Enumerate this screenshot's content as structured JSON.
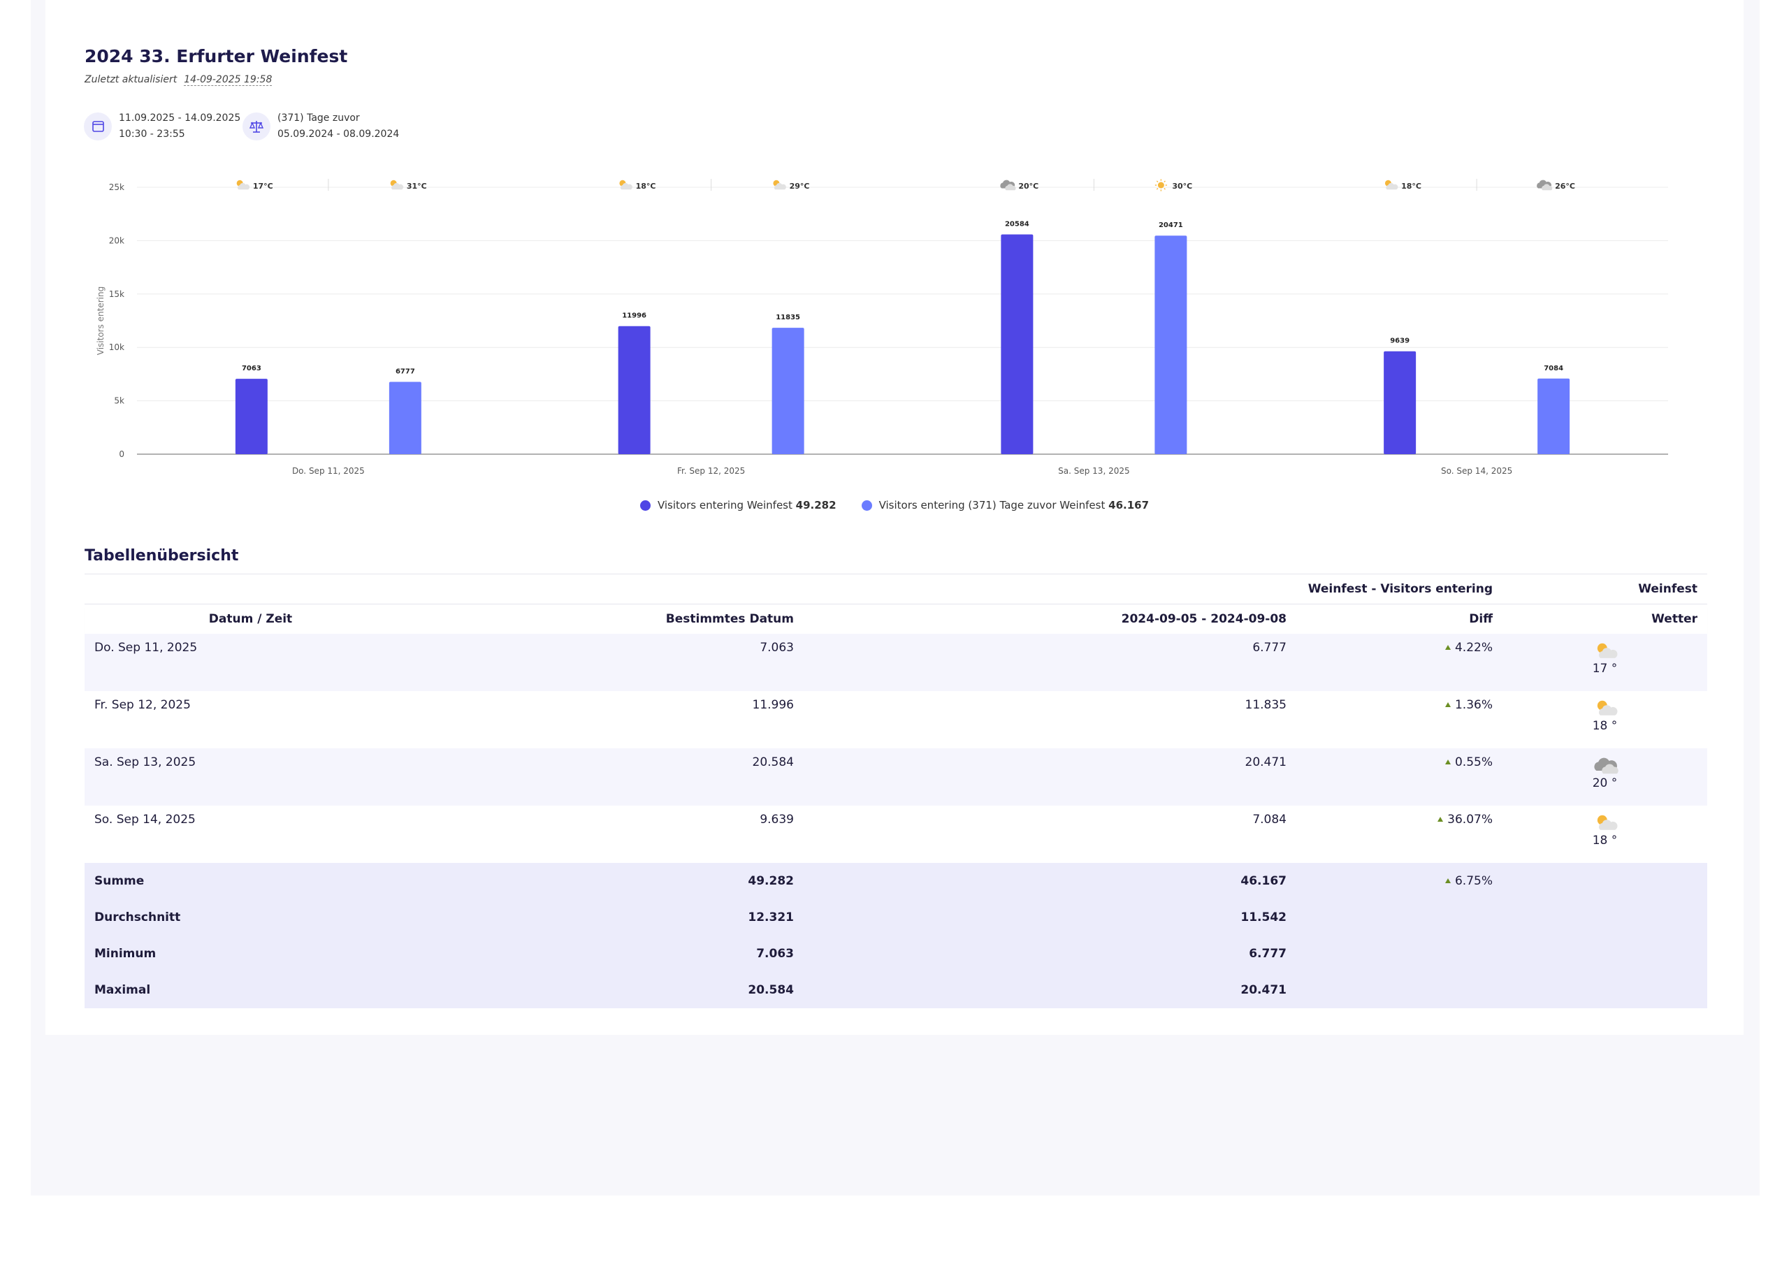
{
  "header": {
    "title": "2024 33. Erfurter Weinfest",
    "updated_label": "Zuletzt aktualisiert",
    "updated": "14-09-2025 19:58",
    "period": {
      "dates": "11.09.2025 - 14.09.2025",
      "times": "10:30 - 23:55"
    },
    "compare": {
      "label": "(371) Tage zuvor",
      "dates": "05.09.2024 - 08.09.2024"
    }
  },
  "chart_data": {
    "type": "bar",
    "y_label": "Visitors entering",
    "categories": [
      "Do. Sep 11, 2025",
      "Fr. Sep 12, 2025",
      "Sa. Sep 13, 2025",
      "So. Sep 14, 2025"
    ],
    "series": [
      {
        "name": "Visitors entering Weinfest",
        "total": "49.282",
        "color": "#4f46e5",
        "values": [
          7063,
          11996,
          20584,
          9639
        ],
        "weather": [
          "17°C",
          "18°C",
          "20°C",
          "18°C"
        ],
        "weather_icons": [
          "partly-sunny",
          "partly-sunny",
          "cloudy",
          "partly-sunny"
        ]
      },
      {
        "name": "Visitors entering (371) Tage zuvor Weinfest",
        "total": "46.167",
        "color": "#6b7cff",
        "values": [
          6777,
          11835,
          20471,
          7084
        ],
        "weather": [
          "31°C",
          "29°C",
          "30°C",
          "26°C"
        ],
        "weather_icons": [
          "partly-sunny",
          "partly-sunny",
          "sunny",
          "cloudy"
        ]
      }
    ],
    "ylim": [
      0,
      25000
    ],
    "yticks": [
      0,
      {
        "value": 5000,
        "label": "5k"
      },
      {
        "value": 10000,
        "label": "10k"
      },
      {
        "value": 15000,
        "label": "15k"
      },
      {
        "value": 20000,
        "label": "20k"
      },
      {
        "value": 25000,
        "label": "25k"
      }
    ],
    "grid": true
  },
  "table": {
    "title": "Tabellenübersicht",
    "groups": [
      "Weinfest - Visitors entering",
      "Weinfest"
    ],
    "columns": [
      "Datum / Zeit",
      "Bestimmtes Datum",
      "2024-09-05 - 2024-09-08",
      "Diff",
      "Wetter"
    ],
    "rows": [
      {
        "date": "Do. Sep 11, 2025",
        "current": "7.063",
        "previous": "6.777",
        "diff": "4.22%",
        "weather": "17 °",
        "icon": "partly-sunny"
      },
      {
        "date": "Fr. Sep 12, 2025",
        "current": "11.996",
        "previous": "11.835",
        "diff": "1.36%",
        "weather": "18 °",
        "icon": "partly-sunny"
      },
      {
        "date": "Sa. Sep 13, 2025",
        "current": "20.584",
        "previous": "20.471",
        "diff": "0.55%",
        "weather": "20 °",
        "icon": "cloudy"
      },
      {
        "date": "So. Sep 14, 2025",
        "current": "9.639",
        "previous": "7.084",
        "diff": "36.07%",
        "weather": "18 °",
        "icon": "partly-sunny"
      }
    ],
    "summary": [
      {
        "label": "Summe",
        "current": "49.282",
        "previous": "46.167",
        "diff": "6.75%"
      },
      {
        "label": "Durchschnitt",
        "current": "12.321",
        "previous": "11.542"
      },
      {
        "label": "Minimum",
        "current": "7.063",
        "previous": "6.777"
      },
      {
        "label": "Maximal",
        "current": "20.584",
        "previous": "20.471"
      }
    ]
  }
}
